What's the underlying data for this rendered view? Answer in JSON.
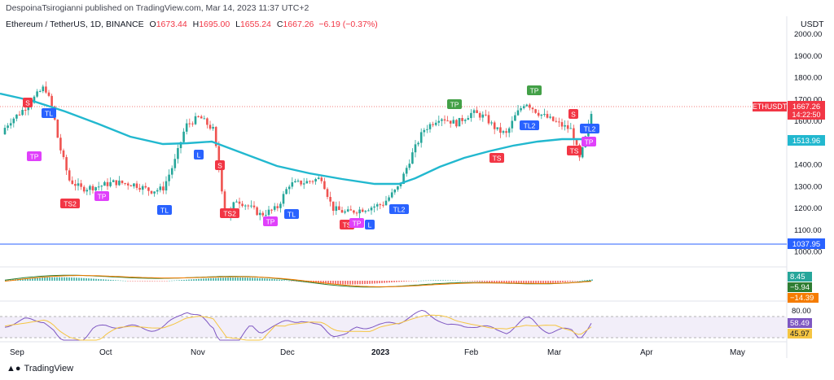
{
  "header": {
    "published": "DespoinaTsirogianni published on TradingView.com, Mar 14, 2023 11:37 UTC+2"
  },
  "legend": {
    "symbol": "Ethereum / TetherUS, 1D, BINANCE",
    "o_label": "O",
    "o_value": "1673.44",
    "h_label": "H",
    "h_value": "1695.00",
    "l_label": "L",
    "l_value": "1655.24",
    "c_label": "C",
    "c_value": "1667.26",
    "change": "−6.19 (−0.37%)"
  },
  "currency": "USDT",
  "price_axis": {
    "ticks": [
      "2000.00",
      "1900.00",
      "1800.00",
      "1700.00",
      "1600.00",
      "1500.00",
      "1400.00",
      "1300.00",
      "1200.00",
      "1100.00",
      "1000.00"
    ],
    "tick_values": [
      2000,
      1900,
      1800,
      1700,
      1600,
      1500,
      1400,
      1300,
      1200,
      1100,
      1000
    ]
  },
  "labels": {
    "ethusdt_tag": "ETHUSDT",
    "last_price": "1667.26",
    "countdown": "14:22:50",
    "ma_value": "1513.96",
    "line_value": "1037.95",
    "macd_1": "8.45",
    "macd_2": "−5.94",
    "macd_3": "−14.39",
    "rsi_axis": "80.00",
    "rsi_1": "58.49",
    "rsi_2": "45.97"
  },
  "time_axis": [
    "Sep",
    "Oct",
    "Nov",
    "Dec",
    "2023",
    "Feb",
    "Mar",
    "Apr",
    "May"
  ],
  "markers": [
    {
      "text": "S",
      "color": "#f23645"
    },
    {
      "text": "TL",
      "color": "#2962ff"
    },
    {
      "text": "TP",
      "color": "#e040fb"
    },
    {
      "text": "TS2",
      "color": "#f23645"
    },
    {
      "text": "TP",
      "color": "#e040fb"
    },
    {
      "text": "TL",
      "color": "#2962ff"
    },
    {
      "text": "L",
      "color": "#2962ff"
    },
    {
      "text": "S",
      "color": "#f23645"
    },
    {
      "text": "TS2",
      "color": "#f23645"
    },
    {
      "text": "TP",
      "color": "#e040fb"
    },
    {
      "text": "TL",
      "color": "#2962ff"
    },
    {
      "text": "TS",
      "color": "#f23645"
    },
    {
      "text": "TP",
      "color": "#e040fb"
    },
    {
      "text": "L",
      "color": "#2962ff"
    },
    {
      "text": "TL2",
      "color": "#2962ff"
    },
    {
      "text": "TP",
      "color": "#43a047"
    },
    {
      "text": "TL2",
      "color": "#2962ff"
    },
    {
      "text": "TS",
      "color": "#f23645"
    },
    {
      "text": "TP",
      "color": "#43a047"
    },
    {
      "text": "TL2",
      "color": "#2962ff"
    },
    {
      "text": "S",
      "color": "#f23645"
    },
    {
      "text": "TS",
      "color": "#f23645"
    },
    {
      "text": "TP",
      "color": "#e040fb"
    }
  ],
  "footer": {
    "brand": "TradingView"
  },
  "colors": {
    "up": "#26a69a",
    "down": "#ef5350",
    "ma": "#22b8cf",
    "hline": "#2962ff",
    "rsi": "#7e57c2",
    "signal": "#f5b342"
  }
}
